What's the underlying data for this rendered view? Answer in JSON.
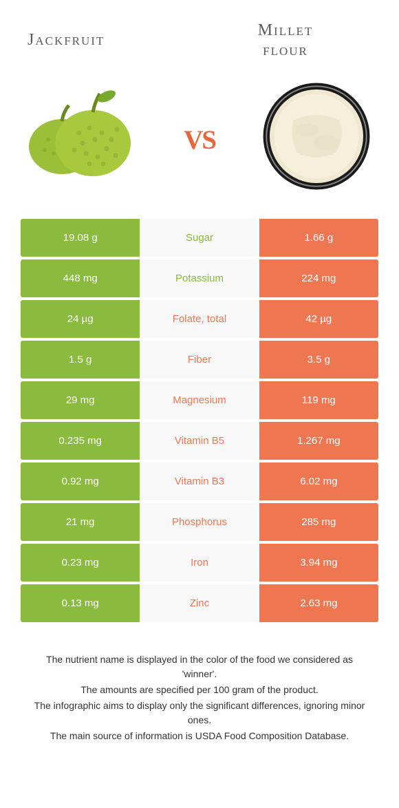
{
  "header": {
    "left_title": "Jackfruit",
    "right_title_line1": "Millet",
    "right_title_line2": "flour",
    "vs": "vs"
  },
  "colors": {
    "left": "#8bbb3e",
    "right": "#ee7752",
    "mid_bg": "#f8f8f8"
  },
  "table": {
    "rows": [
      {
        "left": "19.08 g",
        "label": "Sugar",
        "right": "1.66 g",
        "winner": "left"
      },
      {
        "left": "448 mg",
        "label": "Potassium",
        "right": "224 mg",
        "winner": "left"
      },
      {
        "left": "24 µg",
        "label": "Folate, total",
        "right": "42 µg",
        "winner": "right"
      },
      {
        "left": "1.5 g",
        "label": "Fiber",
        "right": "3.5 g",
        "winner": "right"
      },
      {
        "left": "29 mg",
        "label": "Magnesium",
        "right": "119 mg",
        "winner": "right"
      },
      {
        "left": "0.235 mg",
        "label": "Vitamin B5",
        "right": "1.267 mg",
        "winner": "right"
      },
      {
        "left": "0.92 mg",
        "label": "Vitamin B3",
        "right": "6.02 mg",
        "winner": "right"
      },
      {
        "left": "21 mg",
        "label": "Phosphorus",
        "right": "285 mg",
        "winner": "right"
      },
      {
        "left": "0.23 mg",
        "label": "Iron",
        "right": "3.94 mg",
        "winner": "right"
      },
      {
        "left": "0.13 mg",
        "label": "Zinc",
        "right": "2.63 mg",
        "winner": "right"
      }
    ]
  },
  "footnote": {
    "lines": [
      "The nutrient name is displayed in the color of the food we considered as 'winner'.",
      "The amounts are specified per 100 gram of the product.",
      "The infographic aims to display only the significant differences, ignoring minor ones.",
      "The main source of information is USDA Food Composition Database."
    ]
  }
}
